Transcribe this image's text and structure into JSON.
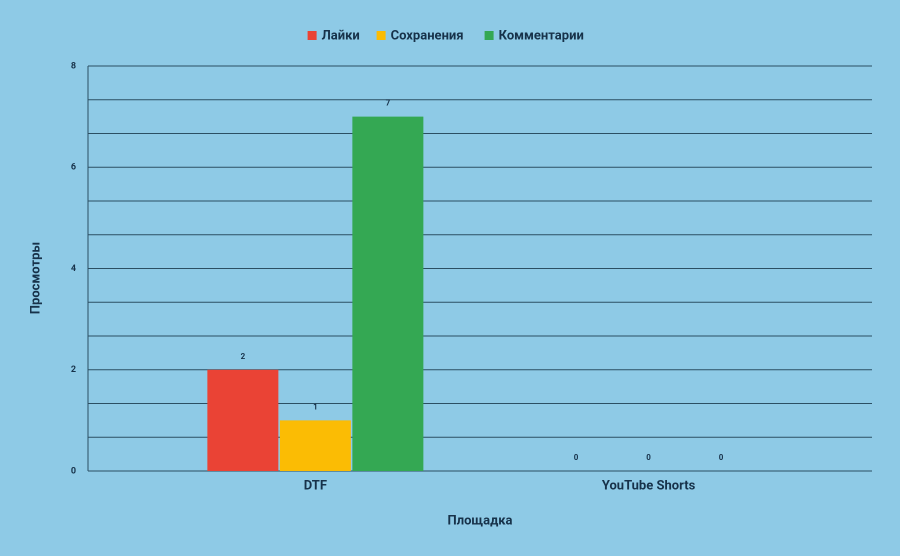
{
  "chart_data": {
    "type": "bar",
    "categories": [
      "DTF",
      "YouTube Shorts"
    ],
    "series": [
      {
        "name": "Лайки",
        "color": "#ea4335",
        "values": [
          2,
          0
        ]
      },
      {
        "name": "Сохранения",
        "color": "#fbbc04",
        "values": [
          1,
          0
        ]
      },
      {
        "name": "Комментарии",
        "color": "#34a853",
        "values": [
          7,
          0
        ]
      }
    ],
    "x_label": "Площадка",
    "y_label": "Просмотры",
    "ylim": [
      0,
      8
    ],
    "yticks": [
      0,
      2,
      4,
      6,
      8
    ],
    "grid": true,
    "minor_gridlines": 2,
    "legend": "top",
    "background": "#8ecae6"
  }
}
